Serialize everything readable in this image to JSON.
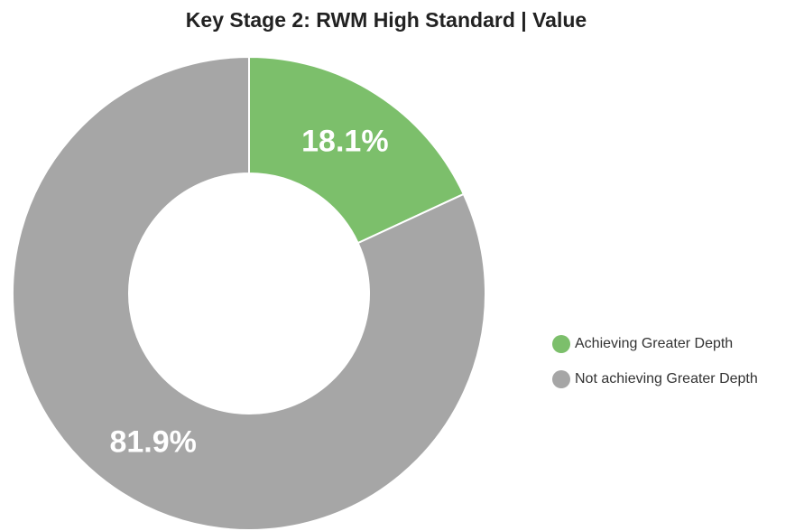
{
  "chart_data": {
    "type": "donut",
    "title": "Key Stage 2: RWM High Standard | Value",
    "categories": [
      "Achieving Greater Depth",
      "Not achieving Greater Depth"
    ],
    "values": [
      18.1,
      81.9
    ],
    "value_labels": [
      "18.1%",
      "81.9%"
    ],
    "colors": [
      "#7cbf6b",
      "#a6a6a6"
    ],
    "legend": "right"
  }
}
